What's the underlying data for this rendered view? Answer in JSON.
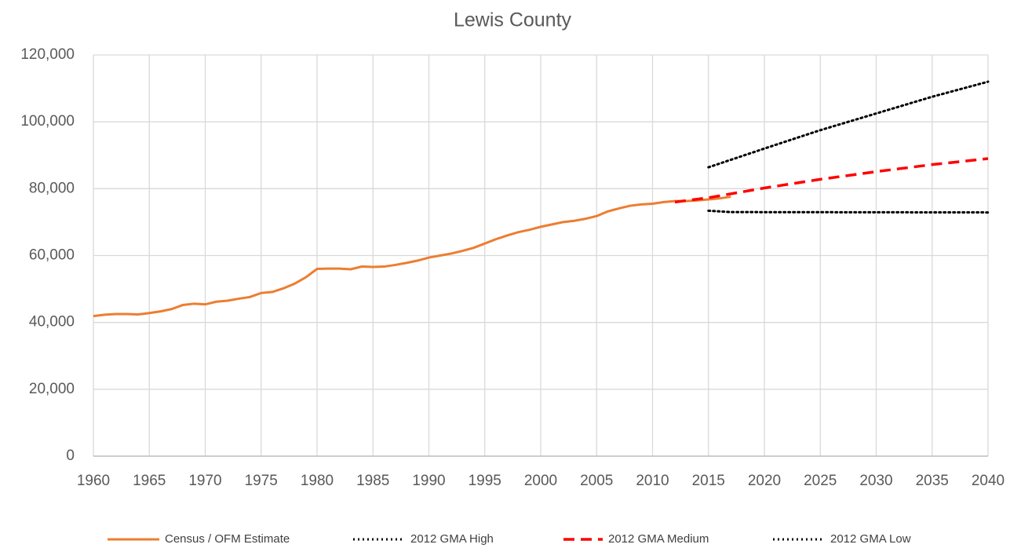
{
  "chart_data": {
    "type": "line",
    "title": "Lewis County",
    "xlim": [
      1960,
      2040
    ],
    "xticks": [
      1960,
      1965,
      1970,
      1975,
      1980,
      1985,
      1990,
      1995,
      2000,
      2005,
      2010,
      2015,
      2020,
      2025,
      2030,
      2035,
      2040
    ],
    "ylim": [
      0,
      120000
    ],
    "yticks": [
      0,
      {
        "value": 20000,
        "label": "20,000"
      },
      {
        "value": 40000,
        "label": "40,000"
      },
      {
        "value": 60000,
        "label": "60,000"
      },
      {
        "value": 80000,
        "label": "80,000"
      },
      {
        "value": 100000,
        "label": "100,000"
      },
      {
        "value": 120000,
        "label": "120,000"
      }
    ],
    "grid": true,
    "legend": "bottom",
    "series": [
      {
        "name": "Census / OFM Estimate",
        "color": "#ed7d31",
        "style": "solid",
        "x": [
          1960,
          1961,
          1962,
          1963,
          1964,
          1965,
          1966,
          1967,
          1968,
          1969,
          1970,
          1971,
          1972,
          1973,
          1974,
          1975,
          1976,
          1977,
          1978,
          1979,
          1980,
          1981,
          1982,
          1983,
          1984,
          1985,
          1986,
          1987,
          1988,
          1989,
          1990,
          1991,
          1992,
          1993,
          1994,
          1995,
          1996,
          1997,
          1998,
          1999,
          2000,
          2001,
          2002,
          2003,
          2004,
          2005,
          2006,
          2007,
          2008,
          2009,
          2010,
          2011,
          2012,
          2013,
          2014,
          2015,
          2016,
          2017
        ],
        "values": [
          41900,
          42300,
          42500,
          42500,
          42400,
          42800,
          43300,
          44000,
          45200,
          45600,
          45400,
          46200,
          46500,
          47100,
          47600,
          48800,
          49100,
          50200,
          51600,
          53500,
          56000,
          56100,
          56100,
          55900,
          56700,
          56600,
          56700,
          57200,
          57800,
          58500,
          59400,
          60000,
          60600,
          61400,
          62300,
          63600,
          64900,
          66000,
          67000,
          67700,
          68600,
          69300,
          70000,
          70400,
          71000,
          71800,
          73200,
          74100,
          74900,
          75300,
          75500,
          76000,
          76300,
          76300,
          76500,
          76800,
          77100,
          77600
        ]
      },
      {
        "name": "2012 GMA High",
        "color": "#000000",
        "style": "dotted",
        "x": [
          2015,
          2020,
          2025,
          2030,
          2035,
          2040
        ],
        "values": [
          86400,
          92000,
          97500,
          102500,
          107500,
          112000
        ]
      },
      {
        "name": "2012 GMA Medium",
        "color": "#ff0000",
        "style": "dashed",
        "x": [
          2012,
          2015,
          2020,
          2025,
          2030,
          2035,
          2040
        ],
        "values": [
          76000,
          77300,
          80200,
          82800,
          85100,
          87200,
          89000
        ]
      },
      {
        "name": "2012 GMA Low",
        "color": "#000000",
        "style": "dotted",
        "x": [
          2015,
          2017,
          2040
        ],
        "values": [
          73400,
          73000,
          72900
        ]
      }
    ]
  }
}
